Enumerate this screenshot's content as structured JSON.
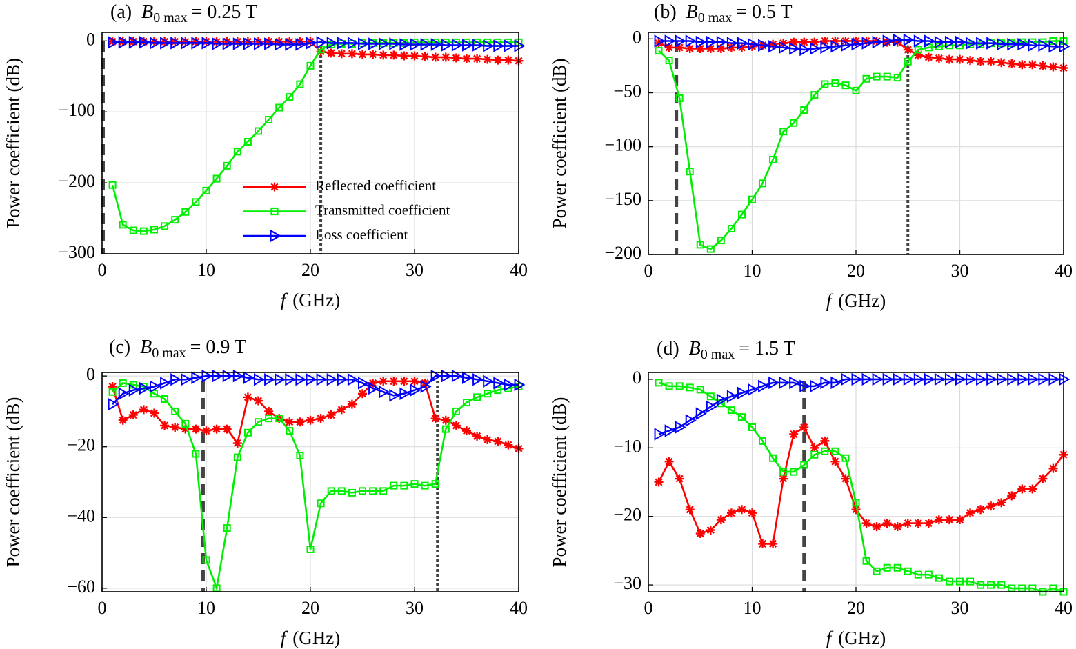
{
  "chart_data": [
    {
      "type": "line",
      "title": "(a)",
      "title_var": "B",
      "title_sub": "0 max",
      "title_rest": "= 0.25 T",
      "xlabel_var": "f",
      "xlabel": "(GHz)",
      "ylabel": "Power coefficient (dB)",
      "xlim": [
        0,
        40
      ],
      "ylim": [
        -300,
        12
      ],
      "xticks": [
        0,
        10,
        20,
        30,
        40
      ],
      "yticks": [
        0,
        {
          "value": -100,
          "label": "−100"
        },
        {
          "value": -200,
          "label": "−200"
        },
        {
          "value": -300,
          "label": "−300"
        }
      ],
      "grid": true,
      "legend": "lower right",
      "vlines": [
        {
          "x": 0.1,
          "style": "dashed"
        },
        {
          "x": 21,
          "style": "dotted"
        }
      ],
      "x": [
        1,
        2,
        3,
        4,
        5,
        6,
        7,
        8,
        9,
        10,
        11,
        12,
        13,
        14,
        15,
        16,
        17,
        18,
        19,
        20,
        21,
        22,
        23,
        24,
        25,
        26,
        27,
        28,
        29,
        30,
        31,
        32,
        33,
        34,
        35,
        36,
        37,
        38,
        39,
        40
      ],
      "series": [
        {
          "name": "Reflected coefficient",
          "color": "#ff0000",
          "marker": "asterisk",
          "values": [
            -1,
            -1,
            -1,
            -1,
            -1,
            -1,
            -1,
            -1,
            -1,
            -1,
            -1,
            -1,
            -1,
            -1,
            -1,
            -1,
            -1,
            -1,
            -1,
            -1,
            -15,
            -17,
            -18,
            -18,
            -19,
            -19,
            -20,
            -20,
            -21,
            -21,
            -22,
            -23,
            -23,
            -24,
            -25,
            -25,
            -26,
            -27,
            -27,
            -28
          ]
        },
        {
          "name": "Transmitted coefficient",
          "color": "#00ee00",
          "marker": "square",
          "values": [
            -203,
            -259,
            -267,
            -268,
            -266,
            -261,
            -252,
            -241,
            -227,
            -211,
            -194,
            -176,
            -156,
            -142,
            -127,
            -111,
            -94,
            -79,
            -61,
            -35,
            -12,
            -5,
            -4,
            -4,
            -3,
            -3,
            -3,
            -3,
            -3,
            -2,
            -2,
            -2,
            -2,
            -2,
            -2,
            -2,
            -2,
            -2,
            -2,
            -2
          ]
        },
        {
          "name": "Loss coefficient",
          "color": "#0000ff",
          "marker": "triangle-right",
          "values": [
            -2,
            -2,
            -2,
            -2,
            -3,
            -3,
            -3,
            -3,
            -3,
            -3,
            -4,
            -4,
            -4,
            -4,
            -4,
            -4,
            -5,
            -5,
            -5,
            -3,
            -2,
            -3,
            -3,
            -3,
            -4,
            -4,
            -4,
            -4,
            -5,
            -5,
            -5,
            -5,
            -6,
            -6,
            -6,
            -6,
            -7,
            -7,
            -7,
            -7
          ]
        }
      ]
    },
    {
      "type": "line",
      "title": "(b)",
      "title_var": "B",
      "title_sub": "0 max",
      "title_rest": "= 0.5 T",
      "xlabel_var": "f",
      "xlabel": "(GHz)",
      "ylabel": "Power coefficient (dB)",
      "xlim": [
        0,
        40
      ],
      "ylim": [
        -200,
        6
      ],
      "xticks": [
        0,
        10,
        20,
        30,
        40
      ],
      "yticks": [
        0,
        {
          "value": -50,
          "label": "−50"
        },
        {
          "value": -100,
          "label": "−100"
        },
        {
          "value": -150,
          "label": "−150"
        },
        {
          "value": -200,
          "label": "−200"
        }
      ],
      "grid": true,
      "vlines": [
        {
          "x": 2.7,
          "style": "dashed"
        },
        {
          "x": 25,
          "style": "dotted"
        }
      ],
      "x": [
        1,
        2,
        3,
        4,
        5,
        6,
        7,
        8,
        9,
        10,
        11,
        12,
        13,
        14,
        15,
        16,
        17,
        18,
        19,
        20,
        21,
        22,
        23,
        24,
        25,
        26,
        27,
        28,
        29,
        30,
        31,
        32,
        33,
        34,
        35,
        36,
        37,
        38,
        39,
        40
      ],
      "series": [
        {
          "color": "#ff0000",
          "marker": "asterisk",
          "values": [
            -4,
            -8,
            -8,
            -9,
            -9,
            -9,
            -9,
            -8,
            -8,
            -7,
            -6,
            -5,
            -4,
            -3,
            -3,
            -3,
            -2,
            -2,
            -2,
            -2,
            -2,
            -2,
            -3,
            -3,
            -10,
            -15,
            -17,
            -18,
            -19,
            -19,
            -20,
            -21,
            -21,
            -22,
            -23,
            -24,
            -24,
            -25,
            -26,
            -27
          ]
        },
        {
          "color": "#00ee00",
          "marker": "square",
          "values": [
            -11,
            -20,
            -55,
            -123,
            -191,
            -195,
            -187,
            -176,
            -163,
            -149,
            -134,
            -112,
            -86,
            -78,
            -66,
            -52,
            -42,
            -41,
            -43,
            -48,
            -37,
            -35,
            -35,
            -36,
            -21,
            -10,
            -8,
            -7,
            -6,
            -6,
            -5,
            -5,
            -4,
            -4,
            -4,
            -3,
            -3,
            -3,
            -2,
            -2
          ]
        },
        {
          "color": "#0000ff",
          "marker": "triangle-right",
          "values": [
            -2,
            -2,
            -2,
            -2,
            -3,
            -3,
            -3,
            -4,
            -4,
            -5,
            -6,
            -7,
            -8,
            -9,
            -10,
            -9,
            -8,
            -7,
            -6,
            -5,
            -4,
            -3,
            -2,
            -1,
            -1,
            -2,
            -2,
            -3,
            -3,
            -3,
            -4,
            -4,
            -4,
            -5,
            -5,
            -5,
            -6,
            -6,
            -7,
            -7
          ]
        }
      ]
    },
    {
      "type": "line",
      "title": "(c)",
      "title_var": "B",
      "title_sub": "0 max",
      "title_rest": "= 0.9 T",
      "xlabel_var": "f",
      "xlabel": "(GHz)",
      "ylabel": "Power coefficient (dB)",
      "xlim": [
        0,
        40
      ],
      "ylim": [
        -61,
        1
      ],
      "xticks": [
        0,
        10,
        20,
        30,
        40
      ],
      "yticks": [
        0,
        {
          "value": -20,
          "label": "−20"
        },
        {
          "value": -40,
          "label": "−40"
        },
        {
          "value": -60,
          "label": "−60"
        }
      ],
      "grid": true,
      "vlines": [
        {
          "x": 9.7,
          "style": "dashed"
        },
        {
          "x": 32.2,
          "style": "dotted"
        }
      ],
      "x": [
        1,
        2,
        3,
        4,
        5,
        6,
        7,
        8,
        9,
        10,
        11,
        12,
        13,
        14,
        15,
        16,
        17,
        18,
        19,
        20,
        21,
        22,
        23,
        24,
        25,
        26,
        27,
        28,
        29,
        30,
        31,
        32,
        33,
        34,
        35,
        36,
        37,
        38,
        39,
        40
      ],
      "series": [
        {
          "color": "#ff0000",
          "marker": "asterisk",
          "values": [
            -3,
            -12.5,
            -11,
            -9.5,
            -10.5,
            -14,
            -14.5,
            -15,
            -15,
            -15.5,
            -15,
            -15,
            -19,
            -6,
            -7,
            -10,
            -12,
            -13,
            -13,
            -12.5,
            -12,
            -11,
            -9.5,
            -8,
            -5,
            -2,
            -1.5,
            -1.5,
            -1.5,
            -1.5,
            -2,
            -12,
            -12.5,
            -14,
            -15.5,
            -17,
            -18,
            -18.5,
            -19.5,
            -20.5
          ]
        },
        {
          "color": "#00ee00",
          "marker": "square",
          "values": [
            -4.5,
            -2,
            -2.5,
            -3,
            -5,
            -6.5,
            -10,
            -13.5,
            -22,
            -52,
            -60,
            -43,
            -23,
            -16,
            -13,
            -12,
            -12,
            -15.5,
            -22.5,
            -49,
            -36,
            -32.5,
            -32.5,
            -33,
            -32.5,
            -32.5,
            -32.5,
            -31,
            -31,
            -30.5,
            -31,
            -30.5,
            -15,
            -10,
            -7.5,
            -6,
            -5,
            -4,
            -3.5,
            -3
          ]
        },
        {
          "color": "#0000ff",
          "marker": "triangle-right",
          "values": [
            -8,
            -5,
            -4,
            -3.5,
            -3,
            -2,
            -1,
            -1,
            -0.5,
            0,
            0,
            0,
            0,
            -0.5,
            -1,
            -1,
            -1,
            -1,
            -1,
            -1,
            -1,
            -1,
            -1,
            -1,
            -2,
            -3.5,
            -4.5,
            -5.5,
            -5,
            -4,
            -3,
            0,
            0,
            0,
            -0.5,
            -1,
            -1.5,
            -2,
            -2.5,
            -2.5
          ]
        }
      ]
    },
    {
      "type": "line",
      "title": "(d)",
      "title_var": "B",
      "title_sub": "0 max",
      "title_rest": "= 1.5 T",
      "xlabel_var": "f",
      "xlabel": "(GHz)",
      "ylabel": "Power coefficient (dB)",
      "xlim": [
        0,
        40
      ],
      "ylim": [
        -31,
        1
      ],
      "xticks": [
        0,
        10,
        20,
        30,
        40
      ],
      "yticks": [
        0,
        {
          "value": -10,
          "label": "−10"
        },
        {
          "value": -20,
          "label": "−20"
        },
        {
          "value": -30,
          "label": "−30"
        }
      ],
      "grid": true,
      "vlines": [
        {
          "x": 15,
          "style": "dashed"
        }
      ],
      "x": [
        1,
        2,
        3,
        4,
        5,
        6,
        7,
        8,
        9,
        10,
        11,
        12,
        13,
        14,
        15,
        16,
        17,
        18,
        19,
        20,
        21,
        22,
        23,
        24,
        25,
        26,
        27,
        28,
        29,
        30,
        31,
        32,
        33,
        34,
        35,
        36,
        37,
        38,
        39,
        40
      ],
      "series": [
        {
          "color": "#ff0000",
          "marker": "asterisk",
          "values": [
            -15,
            -12,
            -14.5,
            -19,
            -22.5,
            -22,
            -20.5,
            -19.5,
            -19,
            -19.5,
            -24,
            -24,
            -14.5,
            -8,
            -7,
            -10,
            -9,
            -12,
            -14.5,
            -19,
            -21,
            -21.5,
            -21,
            -21.5,
            -21,
            -21,
            -21,
            -20.5,
            -20.5,
            -20.5,
            -19.5,
            -19,
            -18.5,
            -18,
            -17,
            -16,
            -16,
            -14.5,
            -13,
            -11
          ]
        },
        {
          "color": "#00ee00",
          "marker": "square",
          "values": [
            -0.5,
            -1,
            -1,
            -1.2,
            -1.5,
            -2.5,
            -3.5,
            -4.5,
            -5.5,
            -7,
            -9,
            -11.5,
            -13.5,
            -13.5,
            -12.5,
            -11,
            -10.5,
            -10.5,
            -11.5,
            -18,
            -26.5,
            -28,
            -27.5,
            -27.5,
            -28,
            -28.5,
            -28.5,
            -29,
            -29.5,
            -29.5,
            -29.5,
            -30,
            -30,
            -30,
            -30.5,
            -30.5,
            -30.5,
            -31,
            -30.5,
            -31
          ]
        },
        {
          "color": "#0000ff",
          "marker": "triangle-right",
          "values": [
            -8,
            -7.5,
            -7,
            -6,
            -5,
            -4,
            -3,
            -2.5,
            -2,
            -1.5,
            -1,
            -0.5,
            -0.5,
            -0.5,
            -1,
            -1,
            -0.5,
            -0.5,
            0,
            0,
            0,
            0,
            0,
            0,
            0,
            0,
            0,
            0,
            0,
            0,
            0,
            0,
            0,
            0,
            0,
            0,
            0,
            0,
            0,
            0
          ]
        }
      ]
    }
  ]
}
